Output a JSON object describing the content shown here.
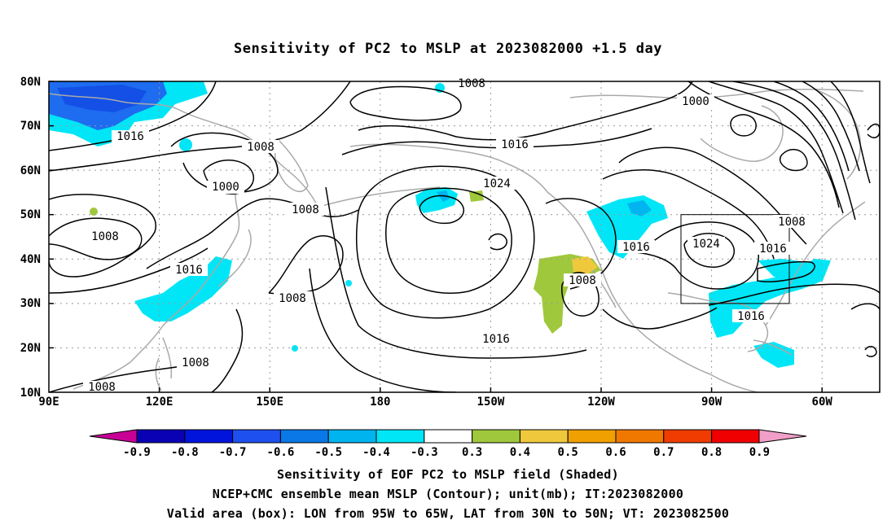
{
  "title": "Sensitivity of PC2 to MSLP at 2023082000 +1.5 day",
  "map": {
    "lat_ticks": [
      "80N",
      "70N",
      "60N",
      "50N",
      "40N",
      "30N",
      "20N",
      "10N"
    ],
    "lon_ticks": [
      "90E",
      "120E",
      "150E",
      "180",
      "150W",
      "120W",
      "90W",
      "60W"
    ],
    "valid_box": {
      "lon_min": "95W",
      "lon_max": "65W",
      "lat_min": "30N",
      "lat_max": "50N"
    },
    "contour_labels": [
      "1008",
      "1000",
      "1016",
      "1008",
      "1000",
      "1008",
      "1008",
      "1016",
      "1008",
      "1016",
      "1024",
      "1016",
      "1016",
      "1024",
      "1008",
      "1016",
      "1016",
      "1008",
      "1008",
      "1008"
    ],
    "colors": {
      "coast": "#a9a9a9",
      "contour": "#000000",
      "grid": "#999999"
    }
  },
  "colorbar": {
    "labels": [
      "-0.9",
      "-0.8",
      "-0.7",
      "-0.6",
      "-0.5",
      "-0.4",
      "-0.3",
      "0.3",
      "0.4",
      "0.5",
      "0.6",
      "0.7",
      "0.8",
      "0.9"
    ],
    "colors": [
      "#0a00b4",
      "#0014dc",
      "#1e50f0",
      "#0a78e6",
      "#00b4f0",
      "#00e6f6",
      "#ffffff",
      "#a0c83c",
      "#f0c83c",
      "#f0a000",
      "#f07800",
      "#f03c00",
      "#f00000"
    ],
    "low_end": "#c80096",
    "high_end": "#f0a0c8"
  },
  "captions": {
    "line1": "Sensitivity of EOF PC2 to MSLP field (Shaded)",
    "line2": "NCEP+CMC ensemble mean MSLP (Contour); unit(mb); IT:2023082000",
    "line3": "Valid area (box): LON from 95W to 65W, LAT from 30N to 50N; VT: 2023082500"
  }
}
